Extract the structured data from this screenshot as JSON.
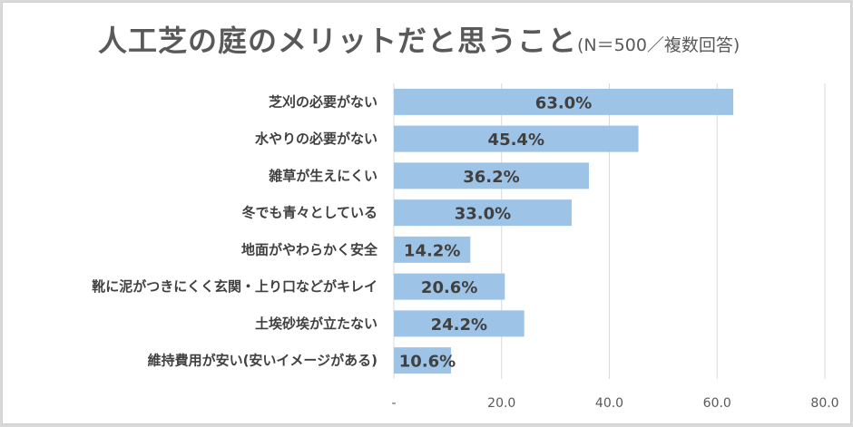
{
  "chart_data": {
    "type": "bar",
    "orientation": "horizontal",
    "title": "人工芝の庭のメリットだと思うこと",
    "subtitle": "(N＝500／複数回答)",
    "categories": [
      "芝刈の必要がない",
      "水やりの必要がない",
      "雑草が生えにくい",
      "冬でも青々としている",
      "地面がやわらかく安全",
      "靴に泥がつきにくく玄関・上り口などがキレイ",
      "土埃砂埃が立たない",
      "維持費用が安い(安いイメージがある)"
    ],
    "values": [
      63.0,
      45.4,
      36.2,
      33.0,
      14.2,
      20.6,
      24.2,
      10.6
    ],
    "data_labels": [
      "63.0%",
      "45.4%",
      "36.2%",
      "33.0%",
      "14.2%",
      "20.6%",
      "24.2%",
      "10.6%"
    ],
    "xlim": [
      0,
      80
    ],
    "x_ticks": [
      0,
      20,
      40,
      60,
      80
    ],
    "x_tick_labels": [
      "-",
      "20.0",
      "40.0",
      "60.0",
      "80.0"
    ],
    "xlabel": "",
    "ylabel": "",
    "grid": true,
    "legend": "none",
    "bar_color": "#9dc3e6",
    "grid_color": "#d9d9d9"
  }
}
